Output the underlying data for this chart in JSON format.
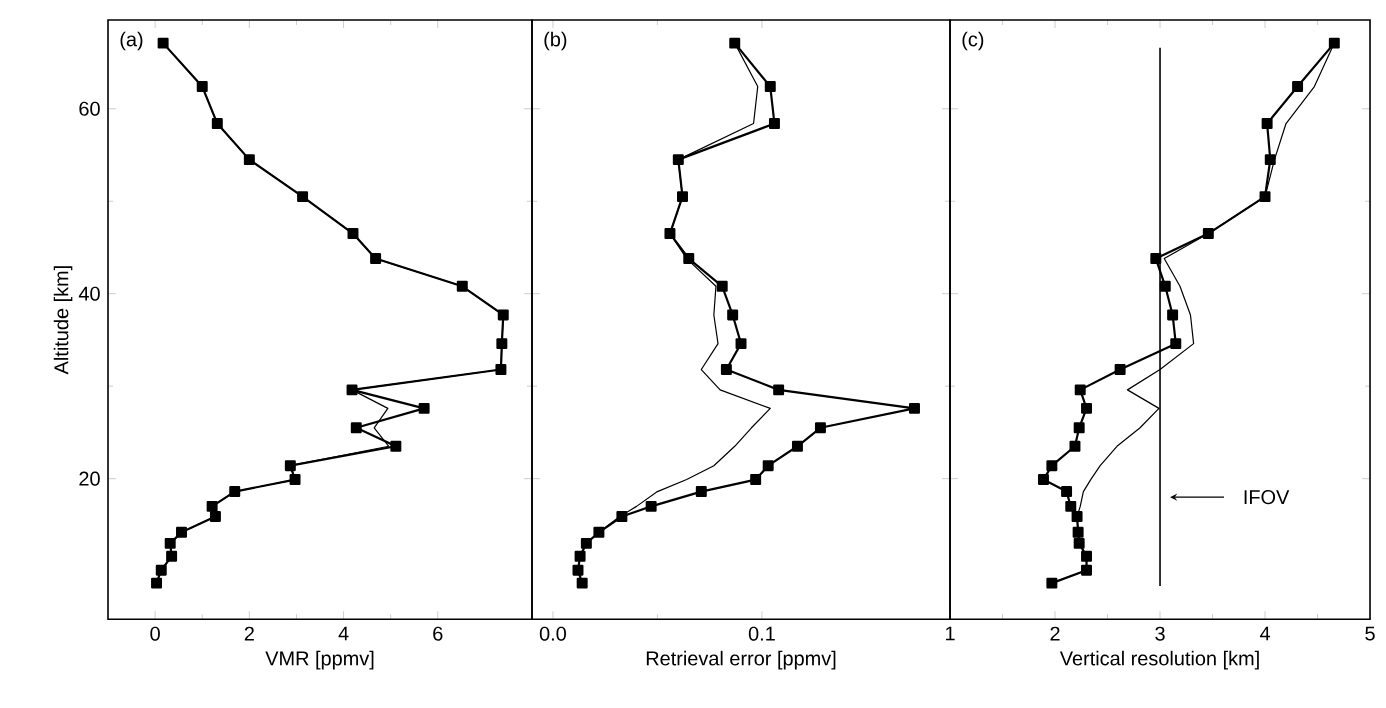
{
  "chart_data": [
    {
      "type": "line",
      "xlabel": "VMR [ppmv]",
      "ylabel": "Altitude [km]",
      "annotations": [
        "(a)"
      ],
      "xlim": [
        -1,
        8
      ],
      "xticks": [
        0,
        2,
        4,
        6
      ],
      "ylim": [
        4.8,
        69.6
      ],
      "yticks": [
        20,
        40,
        60
      ],
      "series": [
        {
          "color": "#000000",
          "marker": "square",
          "x": [
            0.17,
            1.0,
            1.32,
            2.0,
            3.13,
            4.2,
            4.68,
            6.52,
            7.39,
            7.36,
            7.34,
            4.18,
            5.71,
            4.27,
            5.11,
            2.87,
            2.97,
            1.69,
            1.21,
            1.28,
            0.56,
            0.32,
            0.35,
            0.13,
            0.03
          ],
          "values": [
            67.1,
            62.4,
            58.4,
            54.5,
            50.5,
            46.5,
            43.8,
            40.8,
            37.7,
            34.6,
            31.8,
            29.6,
            27.6,
            25.5,
            23.5,
            21.4,
            19.9,
            18.6,
            17.0,
            15.9,
            14.2,
            13.0,
            11.6,
            10.1,
            8.7
          ]
        },
        {
          "color": "#000000",
          "marker": "none",
          "x": [
            0.17,
            1.0,
            1.32,
            2.0,
            3.13,
            4.2,
            4.68,
            6.52,
            7.39,
            7.36,
            7.34,
            4.18,
            4.94,
            4.65,
            4.96,
            2.87,
            2.97,
            1.69,
            1.21,
            1.28,
            0.56,
            0.32,
            0.35,
            0.13,
            0.03
          ],
          "values": [
            67.1,
            62.4,
            58.4,
            54.5,
            50.5,
            46.5,
            43.8,
            40.8,
            37.7,
            34.6,
            31.8,
            29.6,
            27.6,
            25.5,
            23.5,
            21.4,
            19.9,
            18.6,
            17.0,
            15.9,
            14.2,
            13.0,
            11.6,
            10.1,
            8.7
          ]
        }
      ]
    },
    {
      "type": "line",
      "xlabel": "Retrieval error [ppmv]",
      "annotations": [
        "(b)"
      ],
      "xlim": [
        -0.01,
        0.19
      ],
      "xticks": [
        {
          "value": 0,
          "label": "0.0"
        },
        0.1
      ],
      "ylim": [
        4.8,
        69.6
      ],
      "yticks": [
        20,
        40,
        60
      ],
      "tick_labels": "x",
      "series": [
        {
          "color": "#000000",
          "marker": "square",
          "x": [
            0.087,
            0.104,
            0.106,
            0.06,
            0.062,
            0.056,
            0.065,
            0.081,
            0.086,
            0.09,
            0.083,
            0.108,
            0.173,
            0.128,
            0.117,
            0.103,
            0.097,
            0.071,
            0.047,
            0.033,
            0.022,
            0.016,
            0.013,
            0.012,
            0.014
          ],
          "values": [
            67.1,
            62.4,
            58.4,
            54.5,
            50.5,
            46.5,
            43.8,
            40.8,
            37.7,
            34.6,
            31.8,
            29.6,
            27.6,
            25.5,
            23.5,
            21.4,
            19.9,
            18.6,
            17.0,
            15.9,
            14.2,
            13.0,
            11.6,
            10.1,
            8.7
          ]
        },
        {
          "color": "#000000",
          "marker": "none",
          "x": [
            0.087,
            0.098,
            0.096,
            0.06,
            0.062,
            0.056,
            0.064,
            0.078,
            0.077,
            0.079,
            0.071,
            0.08,
            0.104,
            0.095,
            0.087,
            0.077,
            0.064,
            0.05,
            0.04,
            0.032,
            0.022,
            0.016,
            0.013,
            0.012,
            0.014
          ],
          "values": [
            67.1,
            62.4,
            58.4,
            54.5,
            50.5,
            46.5,
            43.8,
            40.8,
            37.7,
            34.6,
            31.8,
            29.6,
            27.6,
            25.5,
            23.5,
            21.4,
            19.9,
            18.6,
            17.0,
            15.9,
            14.2,
            13.0,
            11.6,
            10.1,
            8.7
          ]
        }
      ]
    },
    {
      "type": "line",
      "xlabel": "Vertical resolution [km]",
      "annotations": [
        "(c)"
      ],
      "xlim": [
        1,
        5
      ],
      "xticks": [
        1,
        2,
        3,
        4,
        5
      ],
      "ylim": [
        4.8,
        69.6
      ],
      "yticks": [
        20,
        40,
        60
      ],
      "tick_labels": "x",
      "ref_lines": [
        {
          "axis": "x",
          "value": 3,
          "label": "IFOV",
          "color": "#000000"
        }
      ],
      "series": [
        {
          "color": "#000000",
          "marker": "square",
          "x": [
            4.66,
            4.31,
            4.02,
            4.05,
            4.0,
            3.46,
            2.96,
            3.05,
            3.12,
            3.15,
            2.62,
            2.24,
            2.3,
            2.23,
            2.19,
            1.97,
            1.89,
            2.11,
            2.15,
            2.21,
            2.22,
            2.23,
            2.3,
            2.3,
            1.97
          ],
          "values": [
            67.1,
            62.4,
            58.4,
            54.5,
            50.5,
            46.5,
            43.8,
            40.8,
            37.7,
            34.6,
            31.8,
            29.6,
            27.6,
            25.5,
            23.5,
            21.4,
            19.9,
            18.6,
            17.0,
            15.9,
            14.2,
            13.0,
            11.6,
            10.1,
            8.7
          ]
        },
        {
          "color": "#000000",
          "marker": "none",
          "x": [
            4.66,
            4.47,
            4.2,
            4.09,
            4.0,
            3.46,
            3.04,
            3.19,
            3.29,
            3.32,
            3.0,
            2.69,
            2.99,
            2.81,
            2.59,
            2.43,
            2.34,
            2.27,
            2.24,
            2.21,
            2.22,
            2.23,
            2.3,
            2.3,
            1.97
          ],
          "values": [
            67.1,
            62.4,
            58.4,
            54.5,
            50.5,
            46.5,
            43.8,
            40.8,
            37.7,
            34.6,
            31.8,
            29.6,
            27.6,
            25.5,
            23.5,
            21.4,
            19.9,
            18.6,
            17.0,
            15.9,
            14.2,
            13.0,
            11.6,
            10.1,
            8.7
          ]
        }
      ]
    }
  ]
}
